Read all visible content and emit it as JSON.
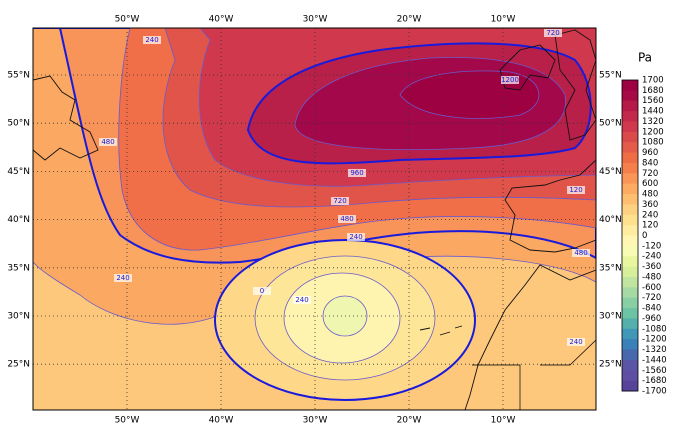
{
  "map": {
    "lon_labels": [
      "50°W",
      "40°W",
      "30°W",
      "20°W",
      "10°W"
    ],
    "lat_labels": [
      "55°N",
      "50°N",
      "45°N",
      "40°N",
      "35°N",
      "30°N",
      "25°N"
    ],
    "contour_labels": [
      240,
      720,
      1200,
      480,
      960,
      720,
      480,
      240,
      240,
      0,
      240,
      240,
      480,
      120
    ],
    "colorbar": {
      "unit": "Pa",
      "labels": [
        1700,
        1680,
        1560,
        1440,
        1320,
        1200,
        1080,
        960,
        840,
        720,
        600,
        480,
        360,
        240,
        120,
        0,
        -120,
        -240,
        -360,
        -480,
        -600,
        -720,
        -840,
        -960,
        -1080,
        -1200,
        -1320,
        -1440,
        -1560,
        -1680,
        -1700
      ],
      "colors": [
        "#9e0142",
        "#a70b45",
        "#b51a49",
        "#c2294a",
        "#d0384d",
        "#da4a4b",
        "#e45c49",
        "#ee6d45",
        "#f57e4b",
        "#f99556",
        "#fcab62",
        "#fdbf6f",
        "#fed081",
        "#fee08f",
        "#feeca0",
        "#fff6b4",
        "#f7fbb4",
        "#eaf69f",
        "#d7ef9b",
        "#bfe5a0",
        "#a5daa4",
        "#88cfa5",
        "#6cc4a5",
        "#55b0ab",
        "#4197b7",
        "#3a80b9",
        "#4868ae",
        "#5a55a4",
        "#5e4fa2",
        "#574499"
      ]
    }
  }
}
